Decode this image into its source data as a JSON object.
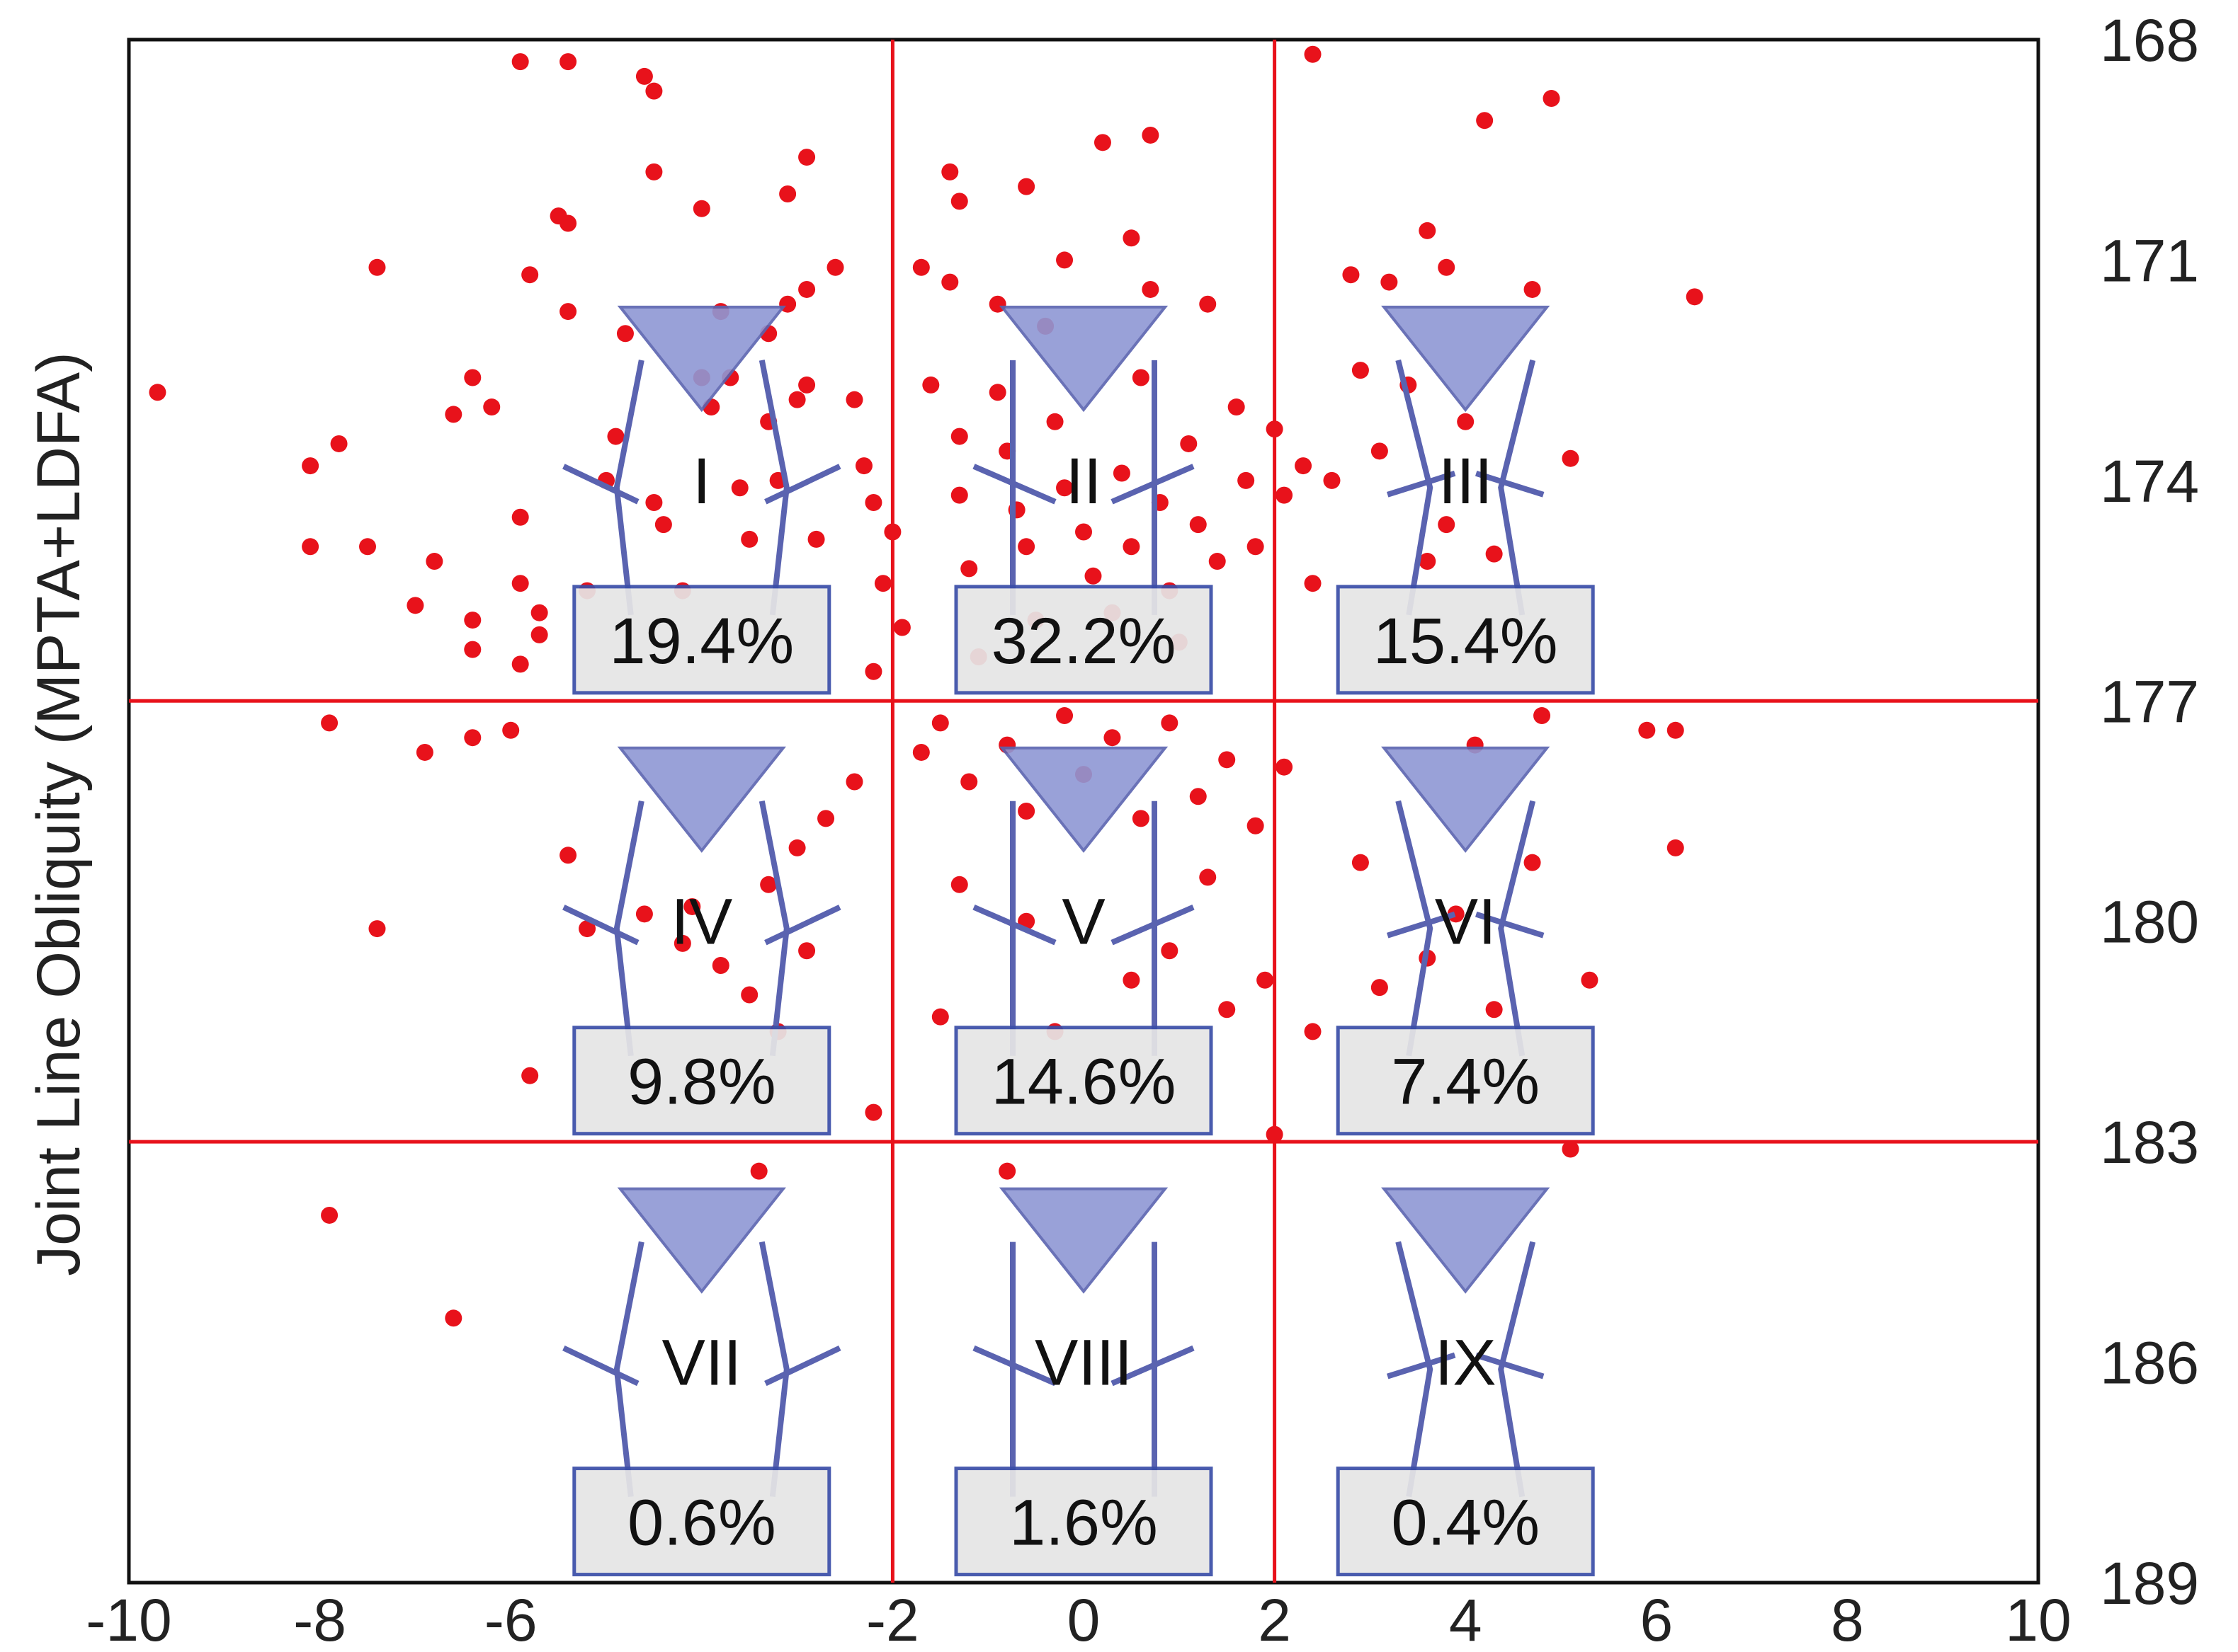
{
  "chart_data": {
    "type": "scatter",
    "title": "",
    "xlabel": "",
    "ylabel": "Joint Line Obliquity (MPTA+LDFA)",
    "xlim": [
      -10,
      10
    ],
    "ylim": [
      168,
      189
    ],
    "y_inverted": true,
    "y_axis_side": "right",
    "x_ticks": [
      -10,
      -8,
      -6,
      -2,
      0,
      2,
      4,
      6,
      8,
      10
    ],
    "y_ticks": [
      168,
      171,
      174,
      177,
      180,
      183,
      186,
      189
    ],
    "divider_x": [
      -2,
      2
    ],
    "divider_y": [
      177,
      183
    ],
    "colors": {
      "point": "#e8121b",
      "divider": "#e8121b",
      "knee_fill": "#8f97d4",
      "knee_stroke": "#5a63b0",
      "box_fill": "#e6e6e6",
      "box_stroke": "#3a4ea8"
    },
    "phenotypes": [
      {
        "label": "I",
        "percent": "19.4%",
        "col": 0,
        "row": 0,
        "x": -4,
        "y": 174,
        "style": "varus"
      },
      {
        "label": "II",
        "percent": "32.2%",
        "col": 1,
        "row": 0,
        "x": 0,
        "y": 174,
        "style": "neutral"
      },
      {
        "label": "III",
        "percent": "15.4%",
        "col": 2,
        "row": 0,
        "x": 4,
        "y": 174,
        "style": "valgus"
      },
      {
        "label": "IV",
        "percent": "9.8%",
        "col": 0,
        "row": 1,
        "x": -4,
        "y": 180,
        "style": "varus"
      },
      {
        "label": "V",
        "percent": "14.6%",
        "col": 1,
        "row": 1,
        "x": 0,
        "y": 180,
        "style": "neutral"
      },
      {
        "label": "VI",
        "percent": "7.4%",
        "col": 2,
        "row": 1,
        "x": 4,
        "y": 180,
        "style": "valgus"
      },
      {
        "label": "VII",
        "percent": "0.6%",
        "col": 0,
        "row": 2,
        "x": -4,
        "y": 186,
        "style": "varus"
      },
      {
        "label": "VIII",
        "percent": "1.6%",
        "col": 1,
        "row": 2,
        "x": 0,
        "y": 186,
        "style": "neutral"
      },
      {
        "label": "IX",
        "percent": "0.4%",
        "col": 2,
        "row": 2,
        "x": 4,
        "y": 186,
        "style": "valgus"
      }
    ],
    "points": [
      [
        -9.7,
        172.8
      ],
      [
        -8.1,
        173.8
      ],
      [
        -7.8,
        173.5
      ],
      [
        -8.1,
        174.9
      ],
      [
        -7.5,
        174.9
      ],
      [
        -7.4,
        171.1
      ],
      [
        -6.6,
        173.1
      ],
      [
        -6.2,
        173.0
      ],
      [
        -6.4,
        172.6
      ],
      [
        -6.8,
        175.1
      ],
      [
        -7.0,
        175.7
      ],
      [
        -6.4,
        175.9
      ],
      [
        -6.4,
        176.3
      ],
      [
        -5.9,
        176.5
      ],
      [
        -5.9,
        175.4
      ],
      [
        -5.9,
        174.5
      ],
      [
        -5.8,
        171.2
      ],
      [
        -5.7,
        175.8
      ],
      [
        -5.7,
        176.1
      ],
      [
        -5.4,
        171.7
      ],
      [
        -5.4,
        170.5
      ],
      [
        -5.2,
        175.5
      ],
      [
        -5.0,
        174.0
      ],
      [
        -4.9,
        173.4
      ],
      [
        -4.5,
        174.3
      ],
      [
        -4.8,
        172.0
      ],
      [
        -4.4,
        174.6
      ],
      [
        -4.2,
        175.5
      ],
      [
        -4.0,
        172.6
      ],
      [
        -3.9,
        173.0
      ],
      [
        -3.8,
        171.7
      ],
      [
        -3.7,
        172.6
      ],
      [
        -3.6,
        174.1
      ],
      [
        -3.5,
        174.8
      ],
      [
        -3.3,
        172.0
      ],
      [
        -3.1,
        171.6
      ],
      [
        -3.3,
        173.2
      ],
      [
        -3.2,
        174.0
      ],
      [
        -3.0,
        172.9
      ],
      [
        -2.9,
        171.4
      ],
      [
        -2.9,
        172.7
      ],
      [
        -2.8,
        174.8
      ],
      [
        -2.6,
        171.1
      ],
      [
        -2.4,
        172.9
      ],
      [
        -2.3,
        173.8
      ],
      [
        -2.2,
        174.3
      ],
      [
        -2.0,
        174.7
      ],
      [
        -2.1,
        175.4
      ],
      [
        -1.9,
        176.0
      ],
      [
        -2.2,
        176.6
      ],
      [
        -1.7,
        171.1
      ],
      [
        -1.6,
        172.7
      ],
      [
        -1.4,
        171.3
      ],
      [
        -1.3,
        173.4
      ],
      [
        -1.3,
        174.2
      ],
      [
        -1.2,
        175.2
      ],
      [
        -1.1,
        176.4
      ],
      [
        -0.9,
        171.6
      ],
      [
        -0.9,
        172.8
      ],
      [
        -0.8,
        173.6
      ],
      [
        -0.7,
        174.4
      ],
      [
        -0.6,
        174.9
      ],
      [
        -0.5,
        175.9
      ],
      [
        -0.4,
        171.9
      ],
      [
        -0.3,
        173.2
      ],
      [
        -0.2,
        174.1
      ],
      [
        0.0,
        174.7
      ],
      [
        0.1,
        175.3
      ],
      [
        0.3,
        175.8
      ],
      [
        0.4,
        173.9
      ],
      [
        0.5,
        174.9
      ],
      [
        0.6,
        172.6
      ],
      [
        0.7,
        171.4
      ],
      [
        0.8,
        174.3
      ],
      [
        0.9,
        175.5
      ],
      [
        1.0,
        176.2
      ],
      [
        1.1,
        173.5
      ],
      [
        1.2,
        174.6
      ],
      [
        1.3,
        171.6
      ],
      [
        1.4,
        175.1
      ],
      [
        1.6,
        173.0
      ],
      [
        1.7,
        174.0
      ],
      [
        1.8,
        174.9
      ],
      [
        2.0,
        173.3
      ],
      [
        2.1,
        174.2
      ],
      [
        2.3,
        173.8
      ],
      [
        2.4,
        175.4
      ],
      [
        2.6,
        174.0
      ],
      [
        2.8,
        171.2
      ],
      [
        2.9,
        172.5
      ],
      [
        3.1,
        173.6
      ],
      [
        3.2,
        171.3
      ],
      [
        3.4,
        172.7
      ],
      [
        3.6,
        175.1
      ],
      [
        3.8,
        174.6
      ],
      [
        4.0,
        173.2
      ],
      [
        4.3,
        175.0
      ],
      [
        4.7,
        171.4
      ],
      [
        5.1,
        173.7
      ],
      [
        -1.7,
        177.7
      ],
      [
        -1.5,
        177.3
      ],
      [
        -1.2,
        178.1
      ],
      [
        -0.8,
        177.6
      ],
      [
        -0.6,
        178.5
      ],
      [
        -0.2,
        177.2
      ],
      [
        0.0,
        178.0
      ],
      [
        0.3,
        177.5
      ],
      [
        0.6,
        178.6
      ],
      [
        0.9,
        177.3
      ],
      [
        1.2,
        178.3
      ],
      [
        1.5,
        177.8
      ],
      [
        1.8,
        178.7
      ],
      [
        2.1,
        177.9
      ],
      [
        -2.4,
        178.1
      ],
      [
        -2.7,
        178.6
      ],
      [
        -3.0,
        179.0
      ],
      [
        -3.3,
        179.5
      ],
      [
        -2.9,
        180.4
      ],
      [
        -3.5,
        181.0
      ],
      [
        -3.8,
        180.6
      ],
      [
        -4.1,
        179.8
      ],
      [
        -4.6,
        179.9
      ],
      [
        -4.2,
        180.3
      ],
      [
        -5.2,
        180.1
      ],
      [
        -5.4,
        179.1
      ],
      [
        -6.0,
        177.4
      ],
      [
        -6.4,
        177.5
      ],
      [
        -6.9,
        177.7
      ],
      [
        -7.9,
        177.3
      ],
      [
        -7.4,
        180.1
      ],
      [
        -5.8,
        182.1
      ],
      [
        -3.2,
        181.5
      ],
      [
        -2.2,
        182.6
      ],
      [
        -1.5,
        181.3
      ],
      [
        -1.3,
        179.5
      ],
      [
        -0.6,
        180.0
      ],
      [
        -0.3,
        181.5
      ],
      [
        0.5,
        180.8
      ],
      [
        0.9,
        180.4
      ],
      [
        1.3,
        179.4
      ],
      [
        1.5,
        181.2
      ],
      [
        1.9,
        180.8
      ],
      [
        2.4,
        181.5
      ],
      [
        2.9,
        179.2
      ],
      [
        3.1,
        180.9
      ],
      [
        3.6,
        180.5
      ],
      [
        3.9,
        179.9
      ],
      [
        4.3,
        181.2
      ],
      [
        4.7,
        179.2
      ],
      [
        5.3,
        180.8
      ],
      [
        4.8,
        177.2
      ],
      [
        4.1,
        177.6
      ],
      [
        5.9,
        177.4
      ],
      [
        6.2,
        177.4
      ],
      [
        6.2,
        179.0
      ],
      [
        5.1,
        183.1
      ],
      [
        2.0,
        182.9
      ],
      [
        -0.8,
        183.4
      ],
      [
        -3.4,
        183.4
      ],
      [
        -7.9,
        184.0
      ],
      [
        -6.6,
        185.4
      ],
      [
        6.4,
        171.5
      ],
      [
        3.6,
        170.6
      ],
      [
        3.8,
        171.1
      ],
      [
        4.2,
        169.1
      ],
      [
        4.9,
        168.8
      ],
      [
        2.4,
        168.2
      ],
      [
        0.7,
        169.3
      ],
      [
        0.2,
        169.4
      ],
      [
        -0.6,
        170.0
      ],
      [
        -1.4,
        169.8
      ],
      [
        -1.3,
        170.2
      ],
      [
        -2.9,
        169.6
      ],
      [
        -3.1,
        170.1
      ],
      [
        -4.0,
        170.3
      ],
      [
        -4.5,
        169.8
      ],
      [
        -4.6,
        168.5
      ],
      [
        -4.5,
        168.7
      ],
      [
        -5.4,
        168.3
      ],
      [
        -5.9,
        168.3
      ],
      [
        -5.5,
        170.4
      ],
      [
        0.5,
        170.7
      ],
      [
        -0.2,
        171.0
      ]
    ]
  }
}
